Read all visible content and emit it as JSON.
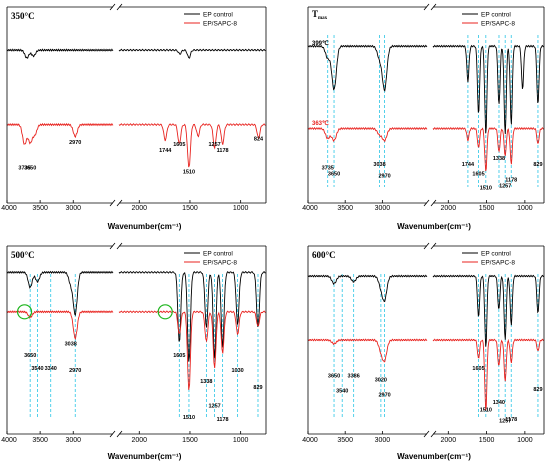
{
  "chart_data": [
    {
      "type": "line",
      "title": "350°C",
      "xlabel": "Wavenumber(cm⁻¹)",
      "xlim": [
        4000,
        750
      ],
      "axis_break": [
        2400,
        2200
      ],
      "x_ticks": [
        "4000",
        "3500",
        "3000",
        "2000",
        "1500",
        "1000"
      ],
      "legend_position": "top-right",
      "series": [
        {
          "name": "EP control",
          "color": "#000000"
        },
        {
          "name": "EP/SAPC-8",
          "color": "#e8231f"
        }
      ],
      "peak_labels": [
        "3735",
        "3650",
        "2970",
        "1744",
        "1605",
        "1510",
        "1257",
        "1178",
        "824"
      ],
      "dashed_lines": []
    },
    {
      "type": "line",
      "title": "Tmax",
      "xlabel": "Wavenumber(cm⁻¹)",
      "xlim": [
        4000,
        750
      ],
      "axis_break": [
        2400,
        2200
      ],
      "x_ticks": [
        "4000",
        "3500",
        "3000",
        "2000",
        "1500",
        "1000"
      ],
      "legend_position": "top-right",
      "series": [
        {
          "name": "EP control",
          "color": "#000000",
          "temperature": "399℃"
        },
        {
          "name": "EP/SAPC-8",
          "color": "#e8231f",
          "temperature": "363℃"
        }
      ],
      "peak_labels": [
        "3735",
        "3650",
        "3038",
        "2970",
        "1744",
        "1605",
        "1510",
        "1338",
        "1257",
        "1178",
        "829"
      ],
      "dashed_lines": [
        3735,
        3650,
        3038,
        2970,
        1744,
        1605,
        1510,
        1338,
        1257,
        1178,
        829
      ]
    },
    {
      "type": "line",
      "title": "500°C",
      "xlabel": "Wavenumber(cm⁻¹)",
      "xlim": [
        4000,
        750
      ],
      "axis_break": [
        2400,
        2200
      ],
      "x_ticks": [
        "4000",
        "3500",
        "3000",
        "2000",
        "1500",
        "1000"
      ],
      "legend_position": "top-right",
      "series": [
        {
          "name": "EP control",
          "color": "#000000"
        },
        {
          "name": "EP/SAPC-8",
          "color": "#e8231f"
        }
      ],
      "peak_labels": [
        "3650",
        "3540",
        "3340",
        "3038",
        "2970",
        "1605",
        "1510",
        "1338",
        "1257",
        "1178",
        "1030",
        "829"
      ],
      "dashed_lines": [
        3650,
        3540,
        3340,
        2970,
        1605,
        1510,
        1338,
        1257,
        1178,
        1030,
        829
      ],
      "circled_positions": [
        3735,
        1744
      ]
    },
    {
      "type": "line",
      "title": "600°C",
      "xlabel": "Wavenumber(cm⁻¹)",
      "xlim": [
        4000,
        750
      ],
      "axis_break": [
        2400,
        2200
      ],
      "x_ticks": [
        "4000",
        "3500",
        "3000",
        "2000",
        "1500",
        "1000"
      ],
      "legend_position": "top-right",
      "series": [
        {
          "name": "EP control",
          "color": "#000000"
        },
        {
          "name": "EP/SAPC-8",
          "color": "#e8231f"
        }
      ],
      "peak_labels": [
        "3650",
        "3540",
        "3386",
        "3020",
        "2970",
        "1605",
        "1510",
        "1340",
        "1257",
        "1178",
        "829"
      ],
      "dashed_lines": [
        3650,
        3540,
        3386,
        3020,
        2970,
        1605,
        1510,
        1340,
        1257,
        1178,
        829
      ]
    }
  ]
}
